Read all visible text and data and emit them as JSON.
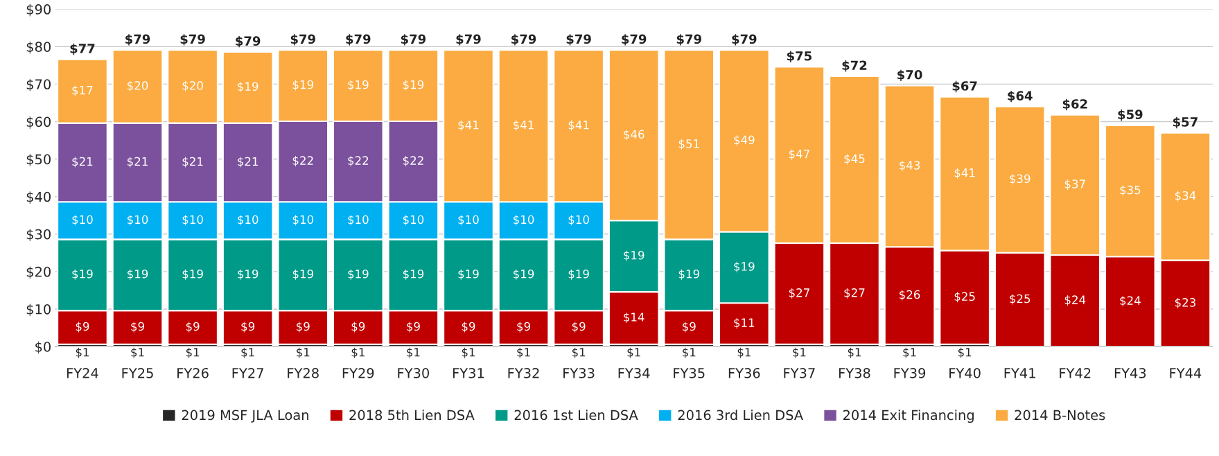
{
  "chart_data": {
    "type": "bar",
    "stacked": true,
    "categories": [
      "FY24",
      "FY25",
      "FY26",
      "FY27",
      "FY28",
      "FY29",
      "FY30",
      "FY31",
      "FY32",
      "FY33",
      "FY34",
      "FY35",
      "FY36",
      "FY37",
      "FY38",
      "FY39",
      "FY40",
      "FY41",
      "FY42",
      "FY43",
      "FY44"
    ],
    "series": [
      {
        "name": "2019 MSF JLA Loan",
        "color": "#262626",
        "values": [
          0.6,
          0.6,
          0.6,
          0.6,
          0.6,
          0.6,
          0.6,
          0.6,
          0.6,
          0.6,
          0.6,
          0.6,
          0.6,
          0.6,
          0.6,
          0.6,
          0.6,
          null,
          null,
          null,
          null
        ],
        "value_labels": [
          "$1",
          "$1",
          "$1",
          "$1",
          "$1",
          "$1",
          "$1",
          "$1",
          "$1",
          "$1",
          "$1",
          "$1",
          "$1",
          "$1",
          "$1",
          "$1",
          "$1",
          null,
          null,
          null,
          null
        ]
      },
      {
        "name": "2018 5th Lien DSA",
        "color": "#c00000",
        "values": [
          9,
          9,
          9,
          9,
          9,
          9,
          9,
          9,
          9,
          9,
          14,
          9,
          11,
          27,
          27,
          26,
          25,
          25,
          24.4,
          24,
          23
        ],
        "value_labels": [
          "$9",
          "$9",
          "$9",
          "$9",
          "$9",
          "$9",
          "$9",
          "$9",
          "$9",
          "$9",
          "$14",
          "$9",
          "$11",
          "$27",
          "$27",
          "$26",
          "$25",
          "$25",
          "$24",
          "$24",
          "$23"
        ]
      },
      {
        "name": "2016 1st Lien DSA",
        "color": "#009a88",
        "values": [
          19,
          19,
          19,
          19,
          19,
          19,
          19,
          19,
          19,
          19,
          19,
          19,
          19,
          null,
          null,
          null,
          null,
          null,
          null,
          null,
          null
        ],
        "value_labels": [
          "$19",
          "$19",
          "$19",
          "$19",
          "$19",
          "$19",
          "$19",
          "$19",
          "$19",
          "$19",
          "$19",
          "$19",
          "$19",
          null,
          null,
          null,
          null,
          null,
          null,
          null,
          null
        ]
      },
      {
        "name": "2016 3rd Lien DSA",
        "color": "#00b0f0",
        "values": [
          10,
          10,
          10,
          10,
          10,
          10,
          10,
          10,
          10,
          10,
          null,
          null,
          null,
          null,
          null,
          null,
          null,
          null,
          null,
          null,
          null
        ],
        "value_labels": [
          "$10",
          "$10",
          "$10",
          "$10",
          "$10",
          "$10",
          "$10",
          "$10",
          "$10",
          "$10",
          null,
          null,
          null,
          null,
          null,
          null,
          null,
          null,
          null,
          null,
          null
        ]
      },
      {
        "name": "2014 Exit Financing",
        "color": "#7b519d",
        "values": [
          21,
          21,
          21,
          21,
          21.5,
          21.5,
          21.5,
          null,
          null,
          null,
          null,
          null,
          null,
          null,
          null,
          null,
          null,
          null,
          null,
          null,
          null
        ],
        "value_labels": [
          "$21",
          "$21",
          "$21",
          "$21",
          "$22",
          "$22",
          "$22",
          null,
          null,
          null,
          null,
          null,
          null,
          null,
          null,
          null,
          null,
          null,
          null,
          null,
          null
        ]
      },
      {
        "name": "2014 B-Notes",
        "color": "#fbab41",
        "values": [
          17,
          19.5,
          19.5,
          19,
          19,
          19,
          19,
          40.5,
          40.5,
          40.5,
          45.5,
          50.5,
          48.5,
          47,
          44.5,
          43,
          41,
          39,
          37.4,
          35,
          34
        ],
        "value_labels": [
          "$17",
          "$20",
          "$20",
          "$19",
          "$19",
          "$19",
          "$19",
          "$41",
          "$41",
          "$41",
          "$46",
          "$51",
          "$49",
          "$47",
          "$45",
          "$43",
          "$41",
          "$39",
          "$37",
          "$35",
          "$34"
        ]
      }
    ],
    "totals": [
      "$77",
      "$79",
      "$79",
      "$79",
      "$79",
      "$79",
      "$79",
      "$79",
      "$79",
      "$79",
      "$79",
      "$79",
      "$79",
      "$75",
      "$72",
      "$70",
      "$67",
      "$64",
      "$62",
      "$59",
      "$57"
    ],
    "ylim": [
      0,
      90
    ],
    "yticks": [
      {
        "value": 0,
        "label": "$0"
      },
      {
        "value": 10,
        "label": "$10"
      },
      {
        "value": 20,
        "label": "$20"
      },
      {
        "value": 30,
        "label": "$30"
      },
      {
        "value": 40,
        "label": "$40"
      },
      {
        "value": 50,
        "label": "$50"
      },
      {
        "value": 60,
        "label": "$60"
      },
      {
        "value": 70,
        "label": "$70"
      },
      {
        "value": 80,
        "label": "$80"
      },
      {
        "value": 90,
        "label": "$90"
      }
    ],
    "grid": "y",
    "legend": "bottom"
  }
}
